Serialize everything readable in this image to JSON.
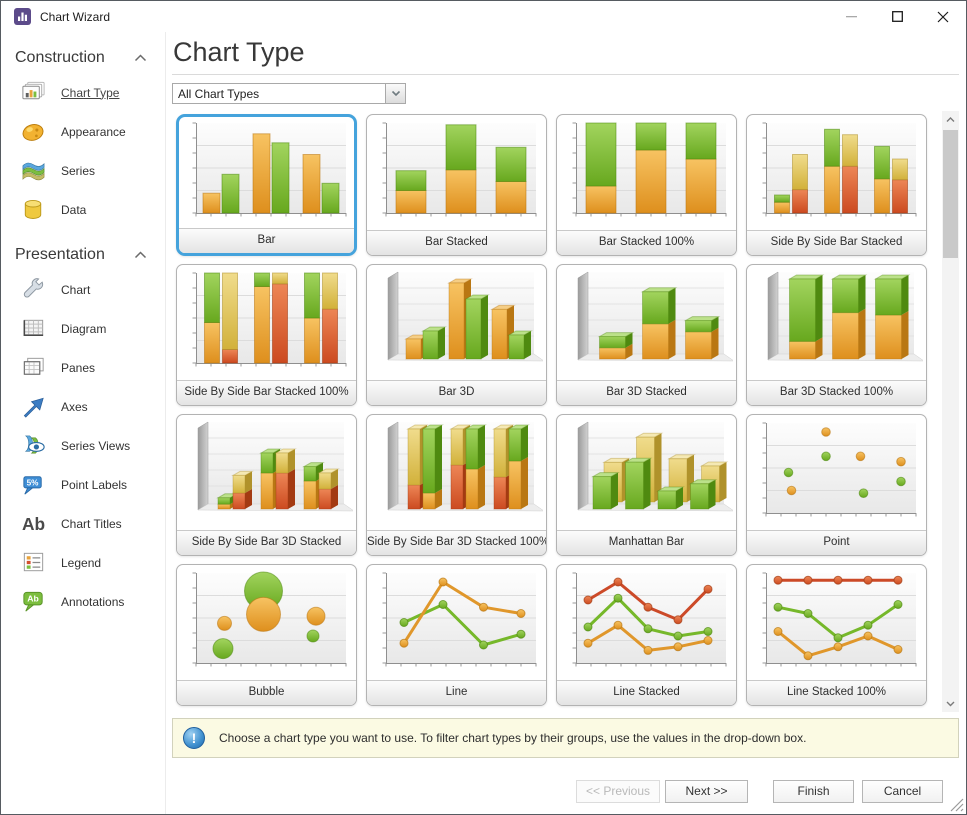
{
  "titlebar": {
    "title": "Chart Wizard"
  },
  "sidebar": {
    "sections": [
      {
        "label": "Construction",
        "items": [
          {
            "label": "Chart Type",
            "icon": "chart-type-icon",
            "selected": true
          },
          {
            "label": "Appearance",
            "icon": "appearance-icon",
            "selected": false
          },
          {
            "label": "Series",
            "icon": "series-icon",
            "selected": false
          },
          {
            "label": "Data",
            "icon": "data-icon",
            "selected": false
          }
        ]
      },
      {
        "label": "Presentation",
        "items": [
          {
            "label": "Chart",
            "icon": "chart-icon",
            "selected": false
          },
          {
            "label": "Diagram",
            "icon": "diagram-icon",
            "selected": false
          },
          {
            "label": "Panes",
            "icon": "panes-icon",
            "selected": false
          },
          {
            "label": "Axes",
            "icon": "axes-icon",
            "selected": false
          },
          {
            "label": "Series Views",
            "icon": "series-views-icon",
            "selected": false
          },
          {
            "label": "Point Labels",
            "icon": "point-labels-icon",
            "selected": false
          },
          {
            "label": "Chart Titles",
            "icon": "chart-titles-icon",
            "selected": false
          },
          {
            "label": "Legend",
            "icon": "legend-icon",
            "selected": false
          },
          {
            "label": "Annotations",
            "icon": "annotations-icon",
            "selected": false
          }
        ]
      }
    ]
  },
  "main": {
    "heading": "Chart Type",
    "filter": {
      "value": "All Chart Types"
    }
  },
  "infobar": {
    "text": "Choose a chart type you want to use. To filter chart types by their groups, use the values in the drop-down box."
  },
  "buttons": {
    "previous": "<< Previous",
    "previous_enabled": false,
    "next": "Next >>",
    "finish": "Finish",
    "cancel": "Cancel"
  },
  "palette": {
    "orange": "#E8A33C",
    "green": "#7CBE3F",
    "red": "#D4502E",
    "yellow": "#E3C95E",
    "selection": "#45A3DC"
  },
  "chart_data": [
    {
      "label": "Bar",
      "selected": true,
      "type": "bar",
      "series": [
        {
          "color": "orange",
          "values": [
            22,
            88,
            65
          ]
        },
        {
          "color": "green",
          "values": [
            43,
            78,
            33
          ]
        }
      ]
    },
    {
      "label": "Bar Stacked",
      "selected": false,
      "type": "bar-stacked",
      "series": [
        {
          "color": "orange",
          "values": [
            25,
            48,
            35
          ]
        },
        {
          "color": "green",
          "values": [
            22,
            50,
            38
          ]
        }
      ]
    },
    {
      "label": "Bar Stacked 100%",
      "selected": false,
      "type": "bar-stacked-100",
      "series": [
        {
          "color": "orange",
          "values": [
            30,
            70,
            60
          ]
        },
        {
          "color": "green",
          "values": [
            70,
            30,
            40
          ]
        }
      ]
    },
    {
      "label": "Side By Side Bar Stacked",
      "selected": false,
      "type": "side-by-side-bar-stacked",
      "groups": [
        {
          "colors": [
            "orange",
            "green"
          ],
          "values": [
            [
              12,
              8
            ],
            [
              52,
              41
            ],
            [
              38,
              36
            ]
          ]
        },
        {
          "colors": [
            "red",
            "yellow"
          ],
          "values": [
            [
              26,
              39
            ],
            [
              52,
              35
            ],
            [
              37,
              23
            ]
          ]
        }
      ]
    },
    {
      "label": "Side By Side Bar Stacked 100%",
      "selected": false,
      "type": "side-by-side-bar-stacked-100",
      "groups": [
        {
          "colors": [
            "orange",
            "green"
          ],
          "values": [
            [
              45,
              55
            ],
            [
              85,
              15
            ],
            [
              50,
              50
            ]
          ]
        },
        {
          "colors": [
            "red",
            "yellow"
          ],
          "values": [
            [
              15,
              85
            ],
            [
              88,
              12
            ],
            [
              60,
              40
            ]
          ]
        }
      ]
    },
    {
      "label": "Bar 3D",
      "selected": false,
      "type": "bar-3d",
      "series": [
        {
          "color": "orange",
          "values": [
            25,
            95,
            62
          ]
        },
        {
          "color": "green",
          "values": [
            35,
            75,
            30
          ]
        }
      ]
    },
    {
      "label": "Bar 3D Stacked",
      "selected": false,
      "type": "bar-3d-stacked",
      "series": [
        {
          "color": "orange",
          "values": [
            14,
            44,
            34
          ]
        },
        {
          "color": "green",
          "values": [
            14,
            40,
            14
          ]
        }
      ]
    },
    {
      "label": "Bar 3D Stacked 100%",
      "selected": false,
      "type": "bar-3d-stacked-100",
      "series": [
        {
          "color": "orange",
          "values": [
            22,
            58,
            55
          ]
        },
        {
          "color": "green",
          "values": [
            78,
            42,
            45
          ]
        }
      ]
    },
    {
      "label": "Side By Side Bar 3D Stacked",
      "selected": false,
      "type": "side-by-side-bar-3d-stacked",
      "groups": [
        {
          "colors": [
            "orange",
            "green"
          ],
          "values": [
            [
              6,
              8
            ],
            [
              45,
              25
            ],
            [
              35,
              18
            ]
          ]
        },
        {
          "colors": [
            "red",
            "yellow"
          ],
          "values": [
            [
              20,
              22
            ],
            [
              45,
              25
            ],
            [
              25,
              20
            ]
          ]
        }
      ]
    },
    {
      "label": "Side By Side Bar 3D Stacked 100%",
      "selected": false,
      "type": "side-by-side-bar-3d-stacked-100",
      "groups": [
        {
          "colors": [
            "red",
            "yellow"
          ],
          "values": [
            [
              30,
              70
            ],
            [
              55,
              45
            ],
            [
              40,
              60
            ]
          ]
        },
        {
          "colors": [
            "orange",
            "green"
          ],
          "values": [
            [
              20,
              80
            ],
            [
              50,
              50
            ],
            [
              60,
              40
            ]
          ]
        }
      ]
    },
    {
      "label": "Manhattan Bar",
      "selected": false,
      "type": "manhattan-bar",
      "rows": [
        {
          "color": "yellow",
          "values": [
            55,
            90,
            60,
            50
          ]
        },
        {
          "color": "green",
          "values": [
            45,
            65,
            25,
            35
          ]
        }
      ]
    },
    {
      "label": "Point",
      "selected": false,
      "type": "point",
      "series": [
        {
          "color": "orange",
          "points": [
            [
              17,
              25
            ],
            [
              40,
              90
            ],
            [
              63,
              63
            ],
            [
              90,
              57
            ]
          ]
        },
        {
          "color": "green",
          "points": [
            [
              15,
              45
            ],
            [
              40,
              63
            ],
            [
              65,
              22
            ],
            [
              90,
              35
            ]
          ]
        }
      ]
    },
    {
      "label": "Bubble",
      "selected": false,
      "type": "bubble",
      "bubbles": [
        {
          "color": "green",
          "x": 45,
          "y": 80,
          "r": 19
        },
        {
          "color": "orange",
          "x": 45,
          "y": 54,
          "r": 17
        },
        {
          "color": "orange",
          "x": 19,
          "y": 44,
          "r": 7
        },
        {
          "color": "green",
          "x": 18,
          "y": 16,
          "r": 10
        },
        {
          "color": "orange",
          "x": 80,
          "y": 52,
          "r": 9
        },
        {
          "color": "green",
          "x": 78,
          "y": 30,
          "r": 6
        }
      ]
    },
    {
      "label": "Line",
      "selected": false,
      "type": "line",
      "series": [
        {
          "color": "orange",
          "points": [
            [
              12,
              22
            ],
            [
              38,
              90
            ],
            [
              65,
              62
            ],
            [
              90,
              55
            ]
          ]
        },
        {
          "color": "green",
          "points": [
            [
              12,
              45
            ],
            [
              38,
              65
            ],
            [
              65,
              20
            ],
            [
              90,
              32
            ]
          ]
        }
      ]
    },
    {
      "label": "Line Stacked",
      "selected": false,
      "type": "line-stacked",
      "series": [
        {
          "color": "red",
          "points": [
            [
              8,
              70
            ],
            [
              28,
              90
            ],
            [
              48,
              62
            ],
            [
              68,
              48
            ],
            [
              88,
              82
            ]
          ]
        },
        {
          "color": "green",
          "points": [
            [
              8,
              40
            ],
            [
              28,
              72
            ],
            [
              48,
              38
            ],
            [
              68,
              30
            ],
            [
              88,
              35
            ]
          ]
        },
        {
          "color": "orange",
          "points": [
            [
              8,
              22
            ],
            [
              28,
              42
            ],
            [
              48,
              14
            ],
            [
              68,
              18
            ],
            [
              88,
              25
            ]
          ]
        }
      ]
    },
    {
      "label": "Line Stacked 100%",
      "selected": false,
      "type": "line-stacked-100",
      "series": [
        {
          "color": "red",
          "points": [
            [
              8,
              92
            ],
            [
              28,
              92
            ],
            [
              48,
              92
            ],
            [
              68,
              92
            ],
            [
              88,
              92
            ]
          ]
        },
        {
          "color": "green",
          "points": [
            [
              8,
              62
            ],
            [
              28,
              55
            ],
            [
              48,
              28
            ],
            [
              68,
              42
            ],
            [
              88,
              65
            ]
          ]
        },
        {
          "color": "orange",
          "points": [
            [
              8,
              35
            ],
            [
              28,
              8
            ],
            [
              48,
              18
            ],
            [
              68,
              30
            ],
            [
              88,
              15
            ]
          ]
        }
      ]
    }
  ]
}
